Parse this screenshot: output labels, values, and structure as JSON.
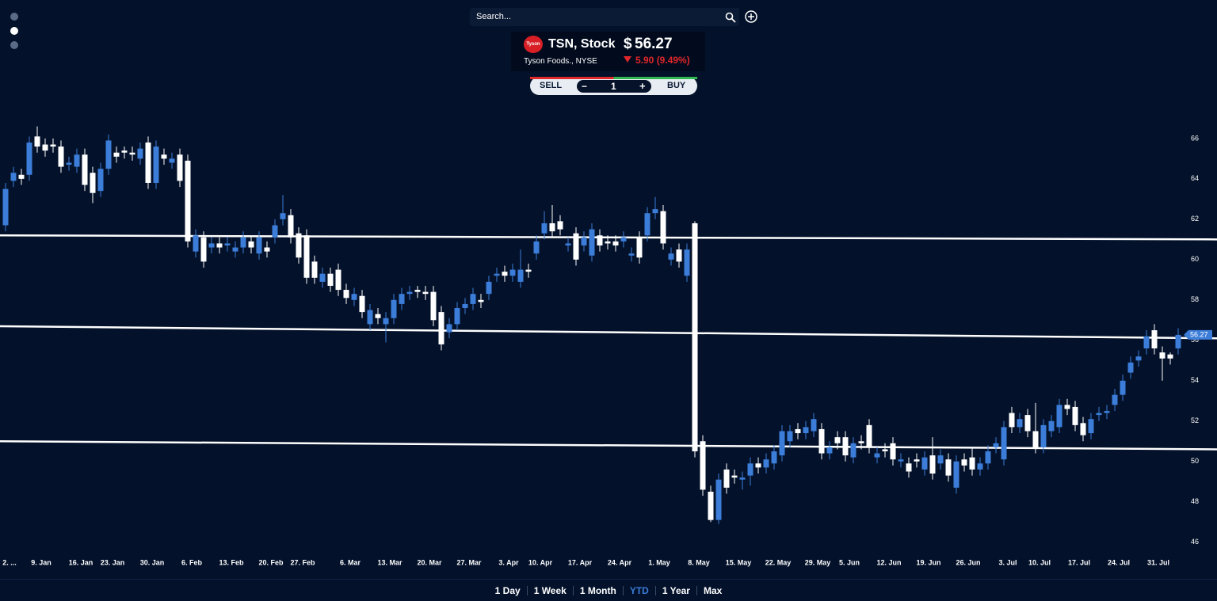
{
  "header": {
    "search_placeholder": "Search...",
    "logo_text": "Tyson",
    "symbol": "TSN, Stock",
    "currency": "$",
    "price": 56.27,
    "company": "Tyson Foods., NYSE",
    "change": "5.90 (9.49%)"
  },
  "trade": {
    "sell": "SELL",
    "minus": "−",
    "quantity": 1,
    "plus": "+",
    "buy": "BUY"
  },
  "ranges": {
    "items": [
      "1 Day",
      "1 Week",
      "1 Month",
      "YTD",
      "1 Year",
      "Max"
    ],
    "active": "YTD"
  },
  "chart_data": {
    "type": "candlestick",
    "categories": [
      "2. ...",
      null,
      null,
      null,
      "9. Jan",
      null,
      null,
      null,
      null,
      "16. Jan",
      null,
      null,
      null,
      "23. Jan",
      null,
      null,
      null,
      null,
      "30. Jan",
      null,
      null,
      null,
      null,
      "6. Feb",
      null,
      null,
      null,
      null,
      "13. Feb",
      null,
      null,
      null,
      null,
      "20. Feb",
      null,
      null,
      null,
      "27. Feb",
      null,
      null,
      null,
      null,
      null,
      "6. Mar",
      null,
      null,
      null,
      null,
      "13. Mar",
      null,
      null,
      null,
      null,
      "20. Mar",
      null,
      null,
      null,
      null,
      "27. Mar",
      null,
      null,
      null,
      null,
      "3. Apr",
      null,
      null,
      null,
      "10. Apr",
      null,
      null,
      null,
      null,
      "17. Apr",
      null,
      null,
      null,
      null,
      "24. Apr",
      null,
      null,
      null,
      null,
      "1. May",
      null,
      null,
      null,
      null,
      "8. May",
      null,
      null,
      null,
      null,
      "15. May",
      null,
      null,
      null,
      null,
      "22. May",
      null,
      null,
      null,
      null,
      "29. May",
      null,
      null,
      null,
      "5. Jun",
      null,
      null,
      null,
      null,
      "12. Jun",
      null,
      null,
      null,
      null,
      "19. Jun",
      null,
      null,
      null,
      null,
      "26. Jun",
      null,
      null,
      null,
      null,
      "3. Jul",
      null,
      null,
      null,
      "10. Jul",
      null,
      null,
      null,
      null,
      "17. Jul",
      null,
      null,
      null,
      null,
      "24. Jul",
      null,
      null,
      null,
      null,
      "31. Jul",
      null,
      null,
      null
    ],
    "open": [
      61.7,
      63.9,
      64.2,
      64.2,
      66.1,
      65.7,
      65.7,
      65.6,
      64.7,
      64.6,
      65.2,
      64.3,
      63.4,
      64.5,
      65.3,
      65.4,
      65.3,
      65.0,
      65.8,
      63.8,
      65.2,
      64.8,
      65.2,
      64.9,
      60.4,
      61.1,
      60.6,
      60.8,
      60.7,
      60.4,
      60.6,
      60.9,
      60.3,
      60.6,
      61.1,
      62.0,
      62.2,
      61.3,
      61.2,
      59.9,
      58.9,
      59.3,
      59.5,
      58.5,
      58.0,
      58.2,
      56.8,
      57.3,
      56.8,
      57.1,
      57.8,
      58.3,
      58.5,
      58.4,
      58.4,
      57.4,
      56.4,
      56.8,
      57.6,
      57.8,
      58.0,
      58.3,
      59.2,
      59.4,
      59.2,
      58.9,
      59.5,
      60.3,
      61.3,
      61.8,
      61.9,
      60.7,
      61.3,
      60.7,
      60.2,
      61.2,
      60.9,
      60.9,
      60.9,
      60.2,
      61.1,
      61.2,
      62.3,
      62.4,
      60.0,
      60.5,
      59.2,
      61.8,
      51.0,
      48.5,
      47.1,
      49.6,
      49.3,
      49.1,
      49.3,
      49.9,
      49.7,
      49.9,
      50.3,
      51.0,
      51.6,
      51.4,
      51.5,
      51.6,
      50.4,
      51.2,
      51.2,
      50.2,
      51.0,
      51.8,
      50.2,
      50.6,
      50.9,
      50.0,
      49.9,
      50.1,
      49.6,
      50.3,
      49.9,
      50.1,
      48.7,
      50.1,
      50.2,
      49.6,
      49.9,
      50.7,
      50.1,
      52.4,
      51.7,
      52.3,
      51.5,
      50.7,
      51.5,
      51.7,
      52.8,
      52.7,
      51.9,
      51.4,
      52.3,
      52.4,
      52.8,
      53.3,
      54.4,
      55.0,
      55.6,
      56.5,
      55.4,
      55.3,
      55.6
    ],
    "high": [
      63.8,
      64.6,
      64.5,
      66.1,
      66.6,
      66.0,
      66.0,
      65.9,
      65.1,
      65.5,
      65.5,
      64.6,
      64.8,
      66.2,
      65.6,
      65.6,
      65.6,
      65.8,
      66.1,
      65.9,
      65.5,
      65.3,
      65.5,
      65.2,
      61.5,
      61.4,
      61.1,
      61.1,
      61.1,
      60.9,
      61.4,
      61.2,
      61.4,
      60.9,
      62.0,
      63.2,
      62.5,
      61.6,
      61.5,
      60.2,
      59.6,
      59.6,
      59.8,
      58.8,
      58.6,
      58.5,
      57.8,
      57.6,
      57.4,
      58.3,
      58.6,
      58.7,
      58.7,
      58.7,
      58.7,
      57.7,
      57.1,
      57.9,
      58.1,
      58.6,
      58.3,
      59.2,
      59.6,
      59.7,
      59.8,
      60.5,
      59.8,
      61.2,
      62.4,
      62.7,
      62.2,
      61.1,
      61.6,
      61.4,
      61.8,
      61.5,
      61.2,
      61.2,
      61.4,
      60.6,
      61.4,
      62.6,
      63.1,
      62.7,
      60.6,
      60.8,
      60.8,
      61.9,
      51.3,
      48.8,
      49.4,
      49.9,
      49.6,
      49.5,
      50.2,
      50.2,
      50.4,
      50.8,
      51.8,
      51.8,
      51.9,
      52.0,
      52.4,
      51.9,
      51.0,
      51.5,
      51.5,
      51.2,
      51.3,
      52.1,
      50.7,
      50.9,
      51.2,
      50.4,
      50.2,
      50.4,
      50.5,
      51.2,
      50.6,
      50.4,
      50.3,
      50.4,
      50.7,
      50.2,
      50.8,
      51.2,
      52.0,
      52.7,
      52.4,
      52.6,
      52.9,
      52.1,
      52.3,
      53.1,
      53.1,
      53.0,
      52.2,
      52.4,
      52.7,
      52.8,
      53.6,
      54.3,
      55.2,
      55.5,
      56.5,
      56.8,
      55.7,
      55.4,
      56.6
    ],
    "low": [
      61.4,
      63.6,
      63.7,
      63.9,
      65.3,
      65.1,
      65.3,
      64.3,
      64.4,
      64.3,
      63.4,
      62.8,
      63.1,
      64.2,
      64.8,
      65.0,
      64.9,
      64.7,
      63.5,
      63.5,
      64.7,
      64.5,
      63.6,
      60.6,
      60.1,
      59.6,
      60.3,
      60.3,
      60.4,
      60.1,
      60.3,
      60.3,
      60.0,
      60.1,
      60.8,
      61.7,
      60.8,
      59.8,
      58.8,
      58.8,
      58.6,
      58.4,
      58.2,
      57.8,
      57.7,
      57.1,
      56.5,
      56.8,
      55.9,
      56.8,
      57.5,
      58.0,
      58.1,
      58.0,
      56.7,
      55.5,
      56.1,
      56.5,
      57.3,
      57.5,
      57.6,
      58.0,
      58.9,
      58.9,
      58.9,
      58.6,
      59.1,
      60.0,
      61.0,
      61.1,
      61.2,
      60.4,
      59.7,
      60.4,
      59.9,
      60.4,
      60.5,
      60.4,
      60.6,
      59.9,
      59.8,
      60.9,
      62.0,
      60.5,
      59.7,
      59.6,
      58.9,
      50.2,
      48.3,
      47.0,
      46.9,
      48.4,
      48.9,
      48.6,
      48.8,
      49.4,
      49.4,
      49.6,
      50.0,
      50.7,
      51.1,
      51.1,
      51.2,
      50.1,
      50.1,
      50.6,
      50.0,
      49.9,
      50.6,
      50.4,
      49.9,
      50.2,
      49.8,
      49.7,
      49.2,
      49.7,
      49.3,
      49.1,
      49.6,
      49.0,
      48.4,
      49.5,
      49.3,
      49.3,
      49.6,
      50.4,
      49.8,
      51.4,
      51.4,
      51.2,
      50.4,
      50.4,
      51.2,
      51.4,
      52.3,
      51.5,
      51.0,
      51.1,
      52.0,
      52.1,
      52.5,
      53.0,
      54.1,
      54.7,
      55.3,
      55.3,
      54.0,
      54.8,
      55.3
    ],
    "close": [
      63.5,
      64.3,
      64.0,
      65.8,
      65.6,
      65.4,
      65.6,
      64.6,
      64.8,
      65.2,
      63.7,
      63.3,
      64.5,
      65.9,
      65.1,
      65.3,
      65.2,
      65.5,
      63.8,
      65.6,
      65.0,
      65.0,
      63.9,
      60.9,
      61.2,
      59.9,
      60.8,
      60.6,
      60.8,
      60.6,
      61.1,
      60.6,
      61.1,
      60.4,
      61.7,
      62.3,
      61.1,
      60.1,
      59.1,
      59.1,
      59.3,
      58.7,
      58.5,
      58.1,
      58.3,
      57.4,
      57.5,
      57.1,
      57.1,
      58.0,
      58.3,
      58.4,
      58.4,
      58.3,
      57.0,
      55.8,
      56.8,
      57.6,
      57.8,
      58.3,
      57.9,
      58.9,
      59.3,
      59.2,
      59.5,
      59.5,
      59.4,
      60.9,
      61.8,
      61.4,
      61.5,
      60.8,
      60.0,
      61.1,
      61.5,
      60.7,
      60.8,
      60.7,
      61.1,
      60.3,
      60.1,
      62.3,
      62.5,
      60.8,
      60.3,
      59.9,
      60.5,
      50.5,
      48.6,
      47.1,
      49.1,
      48.7,
      49.2,
      49.2,
      49.9,
      49.7,
      50.1,
      50.5,
      51.5,
      51.5,
      51.4,
      51.7,
      52.1,
      50.4,
      50.7,
      50.9,
      50.3,
      50.9,
      50.9,
      50.7,
      50.4,
      50.5,
      50.1,
      50.1,
      49.5,
      50.0,
      50.2,
      49.4,
      50.3,
      49.3,
      50.0,
      49.8,
      49.6,
      49.9,
      50.5,
      50.9,
      51.7,
      51.7,
      52.1,
      51.5,
      50.7,
      51.8,
      52.0,
      52.8,
      52.6,
      51.8,
      51.3,
      52.1,
      52.4,
      52.5,
      53.3,
      54.0,
      54.9,
      55.2,
      56.2,
      55.6,
      55.1,
      55.1,
      56.27
    ],
    "up_color": "#3b7dd8",
    "down_color": "#ffffff",
    "trendlines": [
      {
        "values": [
          61.2,
          61.0
        ]
      },
      {
        "values": [
          56.7,
          56.1
        ]
      },
      {
        "values": [
          51.0,
          50.6
        ]
      }
    ],
    "ylim": [
      45.4,
      67.8
    ],
    "yticks": [
      46,
      48,
      50,
      52,
      54,
      56,
      58,
      60,
      62,
      64,
      66
    ]
  }
}
